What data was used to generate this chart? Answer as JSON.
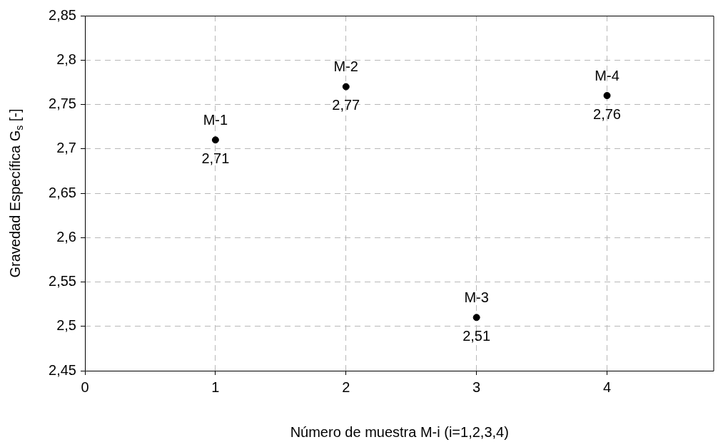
{
  "chart_data": {
    "type": "scatter",
    "xlabel": "Número de muestra M-i (i=1,2,3,4)",
    "ylabel": "Gravedad Específica G$_{s}$ [-]",
    "x": [
      1,
      2,
      3,
      4
    ],
    "values": [
      2.71,
      2.77,
      2.51,
      2.76
    ],
    "color": "#000000",
    "value_labels": [
      "2,71",
      "2,77",
      "2,51",
      "2,76"
    ],
    "annotations": [
      {
        "text": "M-1",
        "x": 1,
        "y": 2.71
      },
      {
        "text": "M-2",
        "x": 2,
        "y": 2.77
      },
      {
        "text": "M-3",
        "x": 3,
        "y": 2.51
      },
      {
        "text": "M-4",
        "x": 4,
        "y": 2.76
      }
    ],
    "xlim": [
      0,
      4.82
    ],
    "xticks": [
      0,
      1,
      2,
      3,
      4
    ],
    "ylim": [
      2.45,
      2.85
    ],
    "yticks": [
      {
        "value": 2.45,
        "label": "2,45"
      },
      {
        "value": 2.5,
        "label": "2,5"
      },
      {
        "value": 2.55,
        "label": "2,55"
      },
      {
        "value": 2.6,
        "label": "2,6"
      },
      {
        "value": 2.65,
        "label": "2,65"
      },
      {
        "value": 2.7,
        "label": "2,7"
      },
      {
        "value": 2.75,
        "label": "2,75"
      },
      {
        "value": 2.8,
        "label": "2,8"
      },
      {
        "value": 2.85,
        "label": "2,85"
      }
    ],
    "grid": true,
    "marker": "circle",
    "legend": false
  }
}
